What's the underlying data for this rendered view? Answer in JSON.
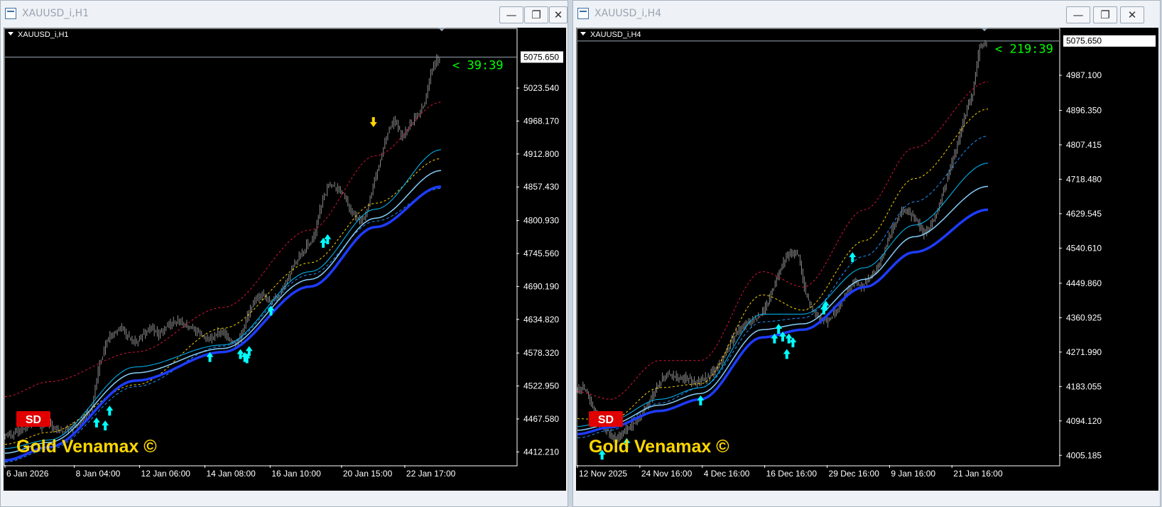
{
  "windows": [
    {
      "title": "XAUUSD_i,H1",
      "chart_label": "XAUUSD_i,H1",
      "timer": "< 39:39",
      "badge": "SD",
      "watermark": "Gold Venamax ©",
      "buttons": {
        "minimize": "minimize-icon",
        "maximize": "maximize-icon",
        "close": "close-icon"
      }
    },
    {
      "title": "XAUUSD_i,H4",
      "chart_label": "XAUUSD_i,H4",
      "timer": "< 219:39",
      "badge": "SD",
      "watermark": "Gold Venamax ©",
      "buttons": {
        "minimize": "minimize-icon",
        "maximize": "maximize-icon",
        "close": "close-icon"
      }
    }
  ],
  "colors": {
    "background": "#000000",
    "candles": "#8c8c8c",
    "band_upper": "#dc143c",
    "band_mid": "#ffd700",
    "ma_light": "#00bfff",
    "ma_pale": "#87cefa",
    "ma_main": "#1e3cff",
    "ma_dash": "#1e90ff",
    "up_arrow": "#00ffff",
    "down_arrow": "#ffd700",
    "timer": "#00ff00",
    "badge": "#e00000",
    "watermark": "#ffd700"
  },
  "chart_data": [
    {
      "type": "candlestick",
      "symbol": "XAUUSD_i",
      "timeframe": "H1",
      "current_price": 5075.65,
      "y_ticks": [
        5023.54,
        4968.17,
        4912.8,
        4857.43,
        4800.93,
        4745.56,
        4690.19,
        4634.82,
        4578.32,
        4522.95,
        4467.58,
        4412.21
      ],
      "y_tick_labels": [
        "5023.540",
        "4968.170",
        "4912.800",
        "4857.430",
        "4800.930",
        "4745.560",
        "4690.190",
        "4634.820",
        "4578.320",
        "4522.950",
        "4467.580",
        "4412.210"
      ],
      "price_label": "5075.650",
      "x_labels": [
        "6 Jan 2026",
        "8 Jan 04:00",
        "12 Jan 06:00",
        "14 Jan 08:00",
        "16 Jan 10:00",
        "20 Jan 15:00",
        "22 Jan 17:00"
      ],
      "x_label_frac": [
        0,
        0.136,
        0.264,
        0.392,
        0.52,
        0.66,
        0.784
      ],
      "ylim": [
        4390,
        5125
      ],
      "close_series": [
        4440,
        4448,
        4452,
        4460,
        4455,
        4462,
        4450,
        4445,
        4453,
        4458,
        4470,
        4488,
        4560,
        4598,
        4612,
        4620,
        4603,
        4598,
        4612,
        4620,
        4610,
        4623,
        4628,
        4632,
        4622,
        4615,
        4605,
        4603,
        4612,
        4608,
        4595,
        4602,
        4640,
        4668,
        4675,
        4666,
        4672,
        4690,
        4720,
        4740,
        4758,
        4770,
        4830,
        4862,
        4855,
        4845,
        4818,
        4800,
        4808,
        4860,
        4902,
        4952,
        4970,
        4940,
        4962,
        4978,
        4998,
        5060,
        5075
      ],
      "series_anchors": {
        "band_upper": [
          [
            0,
            4505
          ],
          [
            0.1,
            4530
          ],
          [
            0.3,
            4580
          ],
          [
            0.5,
            4655
          ],
          [
            0.7,
            4785
          ],
          [
            0.85,
            4910
          ],
          [
            1,
            5000
          ]
        ],
        "band_mid": [
          [
            0,
            4425
          ],
          [
            0.1,
            4445
          ],
          [
            0.3,
            4525
          ],
          [
            0.5,
            4620
          ],
          [
            0.7,
            4730
          ],
          [
            0.85,
            4830
          ],
          [
            1,
            4905
          ]
        ],
        "ma_light": [
          [
            0,
            4418
          ],
          [
            0.1,
            4432
          ],
          [
            0.3,
            4555
          ],
          [
            0.5,
            4592
          ],
          [
            0.7,
            4715
          ],
          [
            0.85,
            4820
          ],
          [
            1,
            4920
          ]
        ],
        "ma_pale": [
          [
            0,
            4410
          ],
          [
            0.1,
            4428
          ],
          [
            0.3,
            4545
          ],
          [
            0.5,
            4586
          ],
          [
            0.7,
            4702
          ],
          [
            0.85,
            4805
          ],
          [
            1,
            4885
          ]
        ],
        "ma_main": [
          [
            0,
            4398
          ],
          [
            0.1,
            4420
          ],
          [
            0.3,
            4532
          ],
          [
            0.5,
            4580
          ],
          [
            0.7,
            4690
          ],
          [
            0.85,
            4790
          ],
          [
            1,
            4858
          ]
        ],
        "ma_dash": [
          [
            0,
            4395
          ],
          [
            0.1,
            4416
          ],
          [
            0.3,
            4522
          ],
          [
            0.5,
            4590
          ],
          [
            0.7,
            4710
          ],
          [
            0.85,
            4800
          ],
          [
            1,
            4855
          ]
        ]
      },
      "up_arrows": [
        [
          0.21,
          4470
        ],
        [
          0.23,
          4465
        ],
        [
          0.24,
          4490
        ],
        [
          0.47,
          4580
        ],
        [
          0.54,
          4585
        ],
        [
          0.55,
          4580
        ],
        [
          0.555,
          4578
        ],
        [
          0.56,
          4590
        ],
        [
          0.61,
          4658
        ],
        [
          0.73,
          4772
        ],
        [
          0.74,
          4778
        ]
      ],
      "down_arrows": [
        [
          0.845,
          4958
        ]
      ]
    },
    {
      "type": "candlestick",
      "symbol": "XAUUSD_i",
      "timeframe": "H4",
      "current_price": 5075.65,
      "y_ticks": [
        4987.1,
        4896.35,
        4807.415,
        4718.48,
        4629.545,
        4540.61,
        4449.86,
        4360.925,
        4271.99,
        4183.055,
        4094.12,
        4005.185
      ],
      "y_tick_labels": [
        "4987.100",
        "4896.350",
        "4807.415",
        "4718.480",
        "4629.545",
        "4540.610",
        "4449.860",
        "4360.925",
        "4271.990",
        "4183.055",
        "4094.120",
        "4005.185"
      ],
      "price_label": "5075.650",
      "x_labels": [
        "12 Nov 2025",
        "24 Nov 16:00",
        "4 Dec 16:00",
        "16 Dec 16:00",
        "29 Dec 16:00",
        "9 Jan 16:00",
        "21 Jan 16:00"
      ],
      "x_label_frac": [
        0,
        0.13,
        0.26,
        0.39,
        0.52,
        0.65,
        0.78
      ],
      "ylim": [
        3980,
        5110
      ],
      "close_series": [
        4180,
        4150,
        4100,
        4080,
        4055,
        4050,
        4065,
        4085,
        4100,
        4130,
        4160,
        4190,
        4215,
        4210,
        4200,
        4205,
        4195,
        4200,
        4210,
        4225,
        4250,
        4290,
        4320,
        4340,
        4350,
        4360,
        4380,
        4420,
        4470,
        4510,
        4530,
        4520,
        4420,
        4380,
        4360,
        4350,
        4370,
        4400,
        4430,
        4455,
        4440,
        4460,
        4480,
        4520,
        4570,
        4610,
        4640,
        4630,
        4610,
        4580,
        4600,
        4640,
        4700,
        4760,
        4820,
        4890,
        4940,
        5060,
        5075
      ],
      "series_anchors": {
        "band_upper": [
          [
            0,
            4170
          ],
          [
            0.08,
            4150
          ],
          [
            0.2,
            4250
          ],
          [
            0.3,
            4250
          ],
          [
            0.45,
            4480
          ],
          [
            0.55,
            4440
          ],
          [
            0.7,
            4640
          ],
          [
            0.82,
            4800
          ],
          [
            1,
            4970
          ]
        ],
        "band_mid": [
          [
            0,
            4100
          ],
          [
            0.08,
            4095
          ],
          [
            0.2,
            4180
          ],
          [
            0.3,
            4190
          ],
          [
            0.45,
            4420
          ],
          [
            0.55,
            4380
          ],
          [
            0.7,
            4560
          ],
          [
            0.82,
            4720
          ],
          [
            1,
            4900
          ]
        ],
        "ma_light": [
          [
            0,
            4080
          ],
          [
            0.08,
            4095
          ],
          [
            0.2,
            4150
          ],
          [
            0.3,
            4180
          ],
          [
            0.45,
            4370
          ],
          [
            0.55,
            4370
          ],
          [
            0.7,
            4490
          ],
          [
            0.82,
            4600
          ],
          [
            1,
            4760
          ]
        ],
        "ma_pale": [
          [
            0,
            4070
          ],
          [
            0.08,
            4085
          ],
          [
            0.2,
            4135
          ],
          [
            0.3,
            4165
          ],
          [
            0.45,
            4330
          ],
          [
            0.55,
            4345
          ],
          [
            0.7,
            4460
          ],
          [
            0.82,
            4570
          ],
          [
            1,
            4700
          ]
        ],
        "ma_main": [
          [
            0,
            4060
          ],
          [
            0.08,
            4078
          ],
          [
            0.2,
            4120
          ],
          [
            0.3,
            4150
          ],
          [
            0.45,
            4310
          ],
          [
            0.55,
            4330
          ],
          [
            0.7,
            4440
          ],
          [
            0.82,
            4530
          ],
          [
            1,
            4640
          ]
        ],
        "ma_dash": [
          [
            0,
            4050
          ],
          [
            0.08,
            4070
          ],
          [
            0.2,
            4140
          ],
          [
            0.3,
            4180
          ],
          [
            0.45,
            4350
          ],
          [
            0.55,
            4360
          ],
          [
            0.7,
            4520
          ],
          [
            0.82,
            4660
          ],
          [
            1,
            4830
          ]
        ]
      },
      "up_arrows": [
        [
          0.06,
          4020
        ],
        [
          0.12,
          4050
        ],
        [
          0.3,
          4160
        ],
        [
          0.48,
          4320
        ],
        [
          0.49,
          4345
        ],
        [
          0.5,
          4325
        ],
        [
          0.51,
          4280
        ],
        [
          0.515,
          4320
        ],
        [
          0.525,
          4310
        ],
        [
          0.6,
          4395
        ],
        [
          0.605,
          4405
        ],
        [
          0.67,
          4530
        ]
      ],
      "down_arrows": []
    }
  ]
}
